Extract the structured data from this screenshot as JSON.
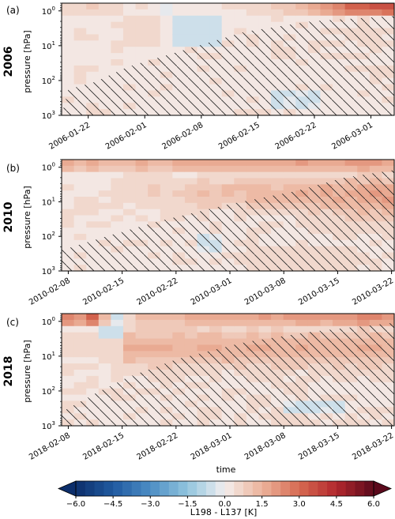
{
  "chart_data": [
    {
      "type": "heatmap",
      "panel_label": "(a)",
      "year_label": "2006",
      "ylabel": "pressure [hPa]",
      "xlabel": "",
      "yscale": "log",
      "ylim": [
        1000,
        0.6
      ],
      "y_ticks": [
        {
          "value": 1,
          "base": "10",
          "exp": "0"
        },
        {
          "value": 10,
          "base": "10",
          "exp": "1"
        },
        {
          "value": 100,
          "base": "10",
          "exp": "2"
        },
        {
          "value": 1000,
          "base": "10",
          "exp": "3"
        }
      ],
      "x_ticks": [
        "2006-01-22",
        "2006-02-01",
        "2006-02-08",
        "2006-02-15",
        "2006-02-22",
        "2006-03-01"
      ],
      "top_band_anomaly_K": [
        0.5,
        0.5,
        0.8,
        0.5,
        0.5,
        0.3,
        0.4,
        0.3,
        -0.3,
        0.2,
        0.2,
        0.3,
        0.3,
        0.4,
        0.4,
        0.5,
        0.6,
        0.8,
        1.0,
        1.2,
        1.6,
        2.2,
        2.6,
        3.0,
        3.2,
        3.4,
        3.5
      ],
      "hatching": "upper-right edge runs from pressure 2 hPa to 8 hPa",
      "stipple_boundary": [
        [
          0.02,
          180
        ],
        [
          0.1,
          110
        ],
        [
          0.2,
          40
        ],
        [
          0.35,
          15
        ],
        [
          0.55,
          4
        ],
        [
          0.75,
          2
        ],
        [
          1.0,
          1.4
        ]
      ]
    },
    {
      "type": "heatmap",
      "panel_label": "(b)",
      "year_label": "2010",
      "ylabel": "pressure [hPa]",
      "xlabel": "",
      "yscale": "log",
      "ylim": [
        1000,
        0.6
      ],
      "y_ticks": [
        {
          "value": 1,
          "base": "10",
          "exp": "0"
        },
        {
          "value": 10,
          "base": "10",
          "exp": "1"
        },
        {
          "value": 100,
          "base": "10",
          "exp": "2"
        },
        {
          "value": 1000,
          "base": "10",
          "exp": "3"
        }
      ],
      "x_ticks": [
        "2010-02-08",
        "2010-02-15",
        "2010-02-22",
        "2010-03-01",
        "2010-03-08",
        "2010-03-15",
        "2010-03-22"
      ],
      "top_band_anomaly_K": [
        1.6,
        1.4,
        1.5,
        1.3,
        1.4,
        1.4,
        1.5,
        1.3,
        1.4,
        1.5,
        1.6,
        1.5,
        1.6,
        1.7,
        1.8,
        1.7,
        1.6,
        1.7,
        1.8,
        1.9,
        1.8,
        1.7,
        1.8,
        1.9,
        2.0,
        1.9,
        1.8
      ],
      "hatching": "upper-right edge runs from pressure 2 hPa to 8 hPa",
      "stipple_boundary": [
        [
          0.0,
          250
        ],
        [
          0.15,
          90
        ],
        [
          0.3,
          35
        ],
        [
          0.5,
          12
        ],
        [
          0.7,
          5
        ],
        [
          0.85,
          2
        ],
        [
          1.0,
          1.2
        ]
      ]
    },
    {
      "type": "heatmap",
      "panel_label": "(c)",
      "year_label": "2018",
      "ylabel": "pressure [hPa]",
      "xlabel": "time",
      "yscale": "log",
      "ylim": [
        1000,
        0.6
      ],
      "y_ticks": [
        {
          "value": 1,
          "base": "10",
          "exp": "0"
        },
        {
          "value": 10,
          "base": "10",
          "exp": "1"
        },
        {
          "value": 100,
          "base": "10",
          "exp": "2"
        },
        {
          "value": 1000,
          "base": "10",
          "exp": "3"
        }
      ],
      "x_ticks": [
        "2018-02-08",
        "2018-02-15",
        "2018-02-22",
        "2018-03-01",
        "2018-03-08",
        "2018-03-15",
        "2018-03-22"
      ],
      "top_band_anomaly_K": [
        2.6,
        2.0,
        3.0,
        1.2,
        -0.4,
        0.6,
        1.2,
        1.3,
        1.4,
        1.4,
        1.5,
        1.6,
        1.6,
        1.7,
        1.8,
        1.8,
        1.9,
        1.8,
        1.9,
        2.0,
        2.0,
        1.9,
        2.0,
        2.1,
        2.6,
        2.4,
        2.1
      ],
      "hatching": "upper-right edge runs from pressure 2 hPa to 8 hPa",
      "stipple_boundary": [
        [
          0.0,
          400
        ],
        [
          0.1,
          120
        ],
        [
          0.2,
          40
        ],
        [
          0.35,
          12
        ],
        [
          0.55,
          4
        ],
        [
          0.75,
          2
        ],
        [
          1.0,
          1.1
        ]
      ]
    }
  ],
  "colorbar": {
    "label": "L198 - L137 [K]",
    "vmin": -6.0,
    "vmax": 6.0,
    "n_levels": 32,
    "ticks": [
      "−6.0",
      "−4.5",
      "−3.0",
      "−1.5",
      "0.0",
      "1.5",
      "3.0",
      "4.5",
      "6.0"
    ],
    "colormap": "RdBu_r",
    "colors": {
      "min": "#0c2e6b",
      "low": "#2d6db3",
      "mid_low": "#a9cde3",
      "zero": "#f4eeee",
      "mid_high": "#ecb39b",
      "high": "#c0432e",
      "max": "#5b0a1c"
    }
  }
}
